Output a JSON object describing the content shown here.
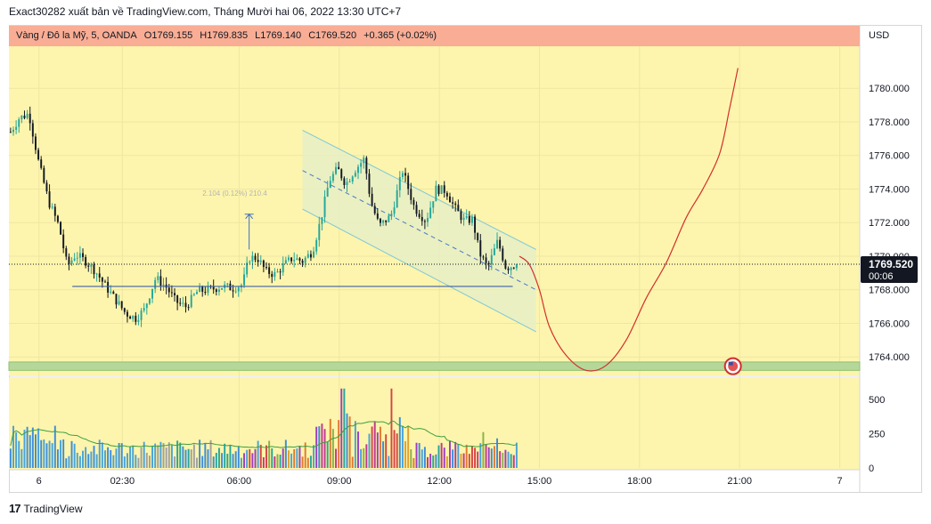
{
  "header": {
    "publish_line": "Exact30282 xuất bản về TradingView.com, Tháng Mười hai 06, 2022 13:30 UTC+7"
  },
  "legend": {
    "symbol": "Vàng / Đô la Mỹ, 5, OANDA",
    "open": "O1769.155",
    "high": "H1769.835",
    "low": "L1769.140",
    "close": "C1769.520",
    "change": "+0.365 (+0.02%)"
  },
  "price_axis": {
    "currency": "USD",
    "last_price": "1769.520",
    "countdown": "00:06",
    "last_price_value": 1769.52
  },
  "drawing_label": "2.104 (0.12%) 210.4",
  "footer": {
    "brand": "TradingView"
  },
  "colors": {
    "background": "#fdf5ad",
    "legend_bg": "#f8ad94",
    "bull": "#26a69a",
    "bear": "#131722",
    "projection": "#d32f2f",
    "support_zone": "#b5d89a",
    "channel_fill": "#e6efc4",
    "channel_line": "#7ec7d6",
    "flat_line": "#3f5fa8",
    "volume_ma": "#3f9e3f"
  },
  "chart_data": {
    "type": "candlestick",
    "title": "Vàng / Đô la Mỹ, 5, OANDA",
    "x_tick_labels": [
      "6",
      "02:30",
      "06:00",
      "09:00",
      "12:00",
      "15:00",
      "18:00",
      "21:00",
      "7"
    ],
    "x_tick_hours": [
      0,
      2.5,
      6,
      9,
      12,
      15,
      18,
      21,
      24
    ],
    "x_range_hours": [
      -0.9,
      24.6
    ],
    "price_ticks": [
      1764,
      1766,
      1768,
      1770,
      1772,
      1774,
      1776,
      1778,
      1780
    ],
    "price_tick_labels": [
      "1764.000",
      "1766.000",
      "1768.000",
      "1770.000",
      "1772.000",
      "1774.000",
      "1776.000",
      "1778.000",
      "1780.000"
    ],
    "price_range": [
      1762.9,
      1782.5
    ],
    "volume_ticks": [
      0,
      250,
      500
    ],
    "volume_tick_labels": [
      "0",
      "250",
      "500"
    ],
    "volume_range": [
      0,
      650
    ],
    "price_path": [
      [
        -0.85,
        1777.4
      ],
      [
        -0.6,
        1778.2
      ],
      [
        -0.3,
        1778.5
      ],
      [
        0,
        1775.5
      ],
      [
        0.3,
        1773.2
      ],
      [
        0.6,
        1771.8
      ],
      [
        0.85,
        1769.4
      ],
      [
        1.1,
        1770.1
      ],
      [
        1.4,
        1769.7
      ],
      [
        1.7,
        1769.1
      ],
      [
        2.0,
        1768.2
      ],
      [
        2.3,
        1767.4
      ],
      [
        2.6,
        1766.6
      ],
      [
        2.9,
        1766.3
      ],
      [
        3.15,
        1766.8
      ],
      [
        3.5,
        1768.7
      ],
      [
        3.8,
        1768.2
      ],
      [
        4.1,
        1767.3
      ],
      [
        4.4,
        1767.0
      ],
      [
        4.75,
        1767.9
      ],
      [
        5.1,
        1768.0
      ],
      [
        5.5,
        1768.2
      ],
      [
        5.8,
        1768.1
      ],
      [
        6.1,
        1768.3
      ],
      [
        6.3,
        1769.9
      ],
      [
        6.55,
        1769.9
      ],
      [
        6.8,
        1769.1
      ],
      [
        7.1,
        1768.9
      ],
      [
        7.3,
        1769.4
      ],
      [
        7.6,
        1769.9
      ],
      [
        7.9,
        1769.7
      ],
      [
        8.2,
        1770.3
      ],
      [
        8.45,
        1772.2
      ],
      [
        8.7,
        1774.5
      ],
      [
        8.95,
        1775.2
      ],
      [
        9.2,
        1774.3
      ],
      [
        9.45,
        1775.1
      ],
      [
        9.75,
        1775.8
      ],
      [
        9.95,
        1773.2
      ],
      [
        10.2,
        1771.8
      ],
      [
        10.55,
        1772.4
      ],
      [
        10.9,
        1775.1
      ],
      [
        11.25,
        1772.9
      ],
      [
        11.6,
        1772.1
      ],
      [
        11.9,
        1774.0
      ],
      [
        12.2,
        1773.9
      ],
      [
        12.45,
        1772.9
      ],
      [
        12.75,
        1772.1
      ],
      [
        13.0,
        1772.2
      ],
      [
        13.2,
        1770.2
      ],
      [
        13.45,
        1769.3
      ],
      [
        13.75,
        1770.9
      ],
      [
        14.0,
        1769.3
      ],
      [
        14.2,
        1769.45
      ],
      [
        14.35,
        1769.52
      ]
    ],
    "projection": {
      "x": [
        14.4,
        14.7,
        15.0,
        15.3,
        15.8,
        16.4,
        17.0,
        17.6,
        18.2,
        18.8,
        19.4,
        19.9,
        20.4,
        20.7,
        20.95
      ],
      "y": [
        1770,
        1769.5,
        1768.0,
        1765.8,
        1764.1,
        1763.2,
        1763.5,
        1765.0,
        1767.5,
        1769.6,
        1772.3,
        1774.0,
        1776.1,
        1778.8,
        1781.2
      ]
    },
    "channel": {
      "upper_start": [
        7.9,
        1777.5
      ],
      "upper_end": [
        14.9,
        1770.4
      ],
      "lower_start": [
        7.9,
        1772.8
      ],
      "lower_end": [
        14.9,
        1765.5
      ],
      "mid_start": [
        7.9,
        1775.1
      ],
      "mid_end": [
        14.9,
        1768.0
      ]
    },
    "support_level": 1768.2,
    "support_zone": [
      1763.7,
      1763.2
    ],
    "measure_tool": {
      "x": 6.3,
      "from": 1770.4,
      "to": 1772.5
    },
    "volume_hint": "volume bars under price; tall bars near 09:00 and 10:30 (~580)"
  }
}
